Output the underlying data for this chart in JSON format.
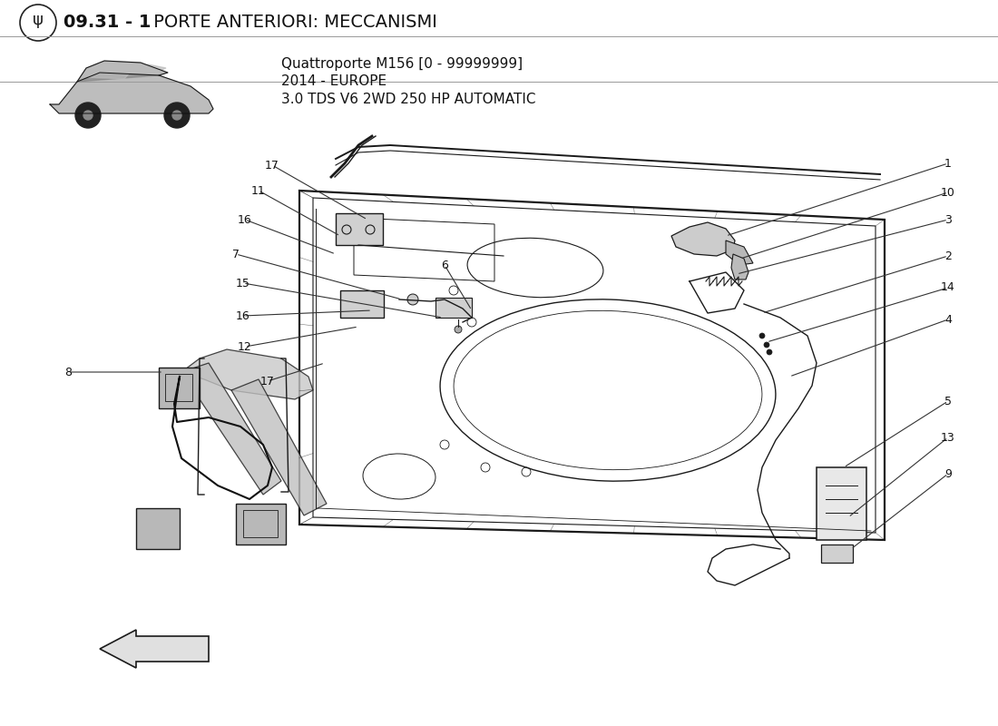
{
  "title_bold": "09.31 - 1",
  "title_rest": " PORTE ANTERIORI: MECCANISMI",
  "subtitle_line1": "Quattroporte M156 [0 - 99999999]",
  "subtitle_line2": "2014 - EUROPE",
  "subtitle_line3": "3.0 TDS V6 2WD 250 HP AUTOMATIC",
  "bg_color": "#ffffff",
  "lc": "#1a1a1a",
  "lw": 0.9
}
